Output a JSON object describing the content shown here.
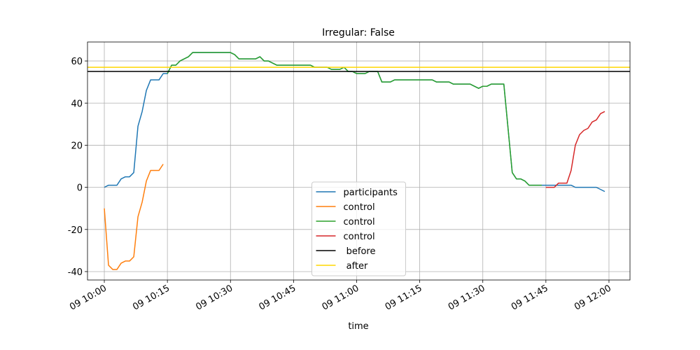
{
  "chart_data": {
    "type": "line",
    "title": "Irregular: False",
    "xlabel": "time",
    "xlim": [
      "09 09:56",
      "09 12:05"
    ],
    "xticks": [
      "09 10:00",
      "09 10:15",
      "09 10:30",
      "09 10:45",
      "09 11:00",
      "09 11:15",
      "09 11:30",
      "09 11:45",
      "09 12:00"
    ],
    "ylim": [
      -44,
      69
    ],
    "yticks": [
      -40,
      -20,
      0,
      20,
      40,
      60
    ],
    "grid": true,
    "legend": "lower center",
    "series": [
      {
        "name": "participants",
        "color": "#1f77b4",
        "x": [
          "09 10:00",
          "09 10:01",
          "09 10:02",
          "09 10:03",
          "09 10:04",
          "09 10:05",
          "09 10:06",
          "09 10:07",
          "09 10:08",
          "09 10:09",
          "09 10:10",
          "09 10:11",
          "09 10:12",
          "09 10:13",
          "09 10:14",
          "09 10:15",
          "09 10:16",
          "09 10:17",
          "09 10:18",
          "09 10:19",
          "09 10:20",
          "09 10:21",
          "09 10:22",
          "09 10:23",
          "09 10:24",
          "09 10:25",
          "09 10:26",
          "09 10:27",
          "09 10:28",
          "09 10:29",
          "09 10:30",
          "09 10:31",
          "09 10:32",
          "09 10:33",
          "09 10:34",
          "09 10:35",
          "09 10:36",
          "09 10:37",
          "09 10:38",
          "09 10:39",
          "09 10:40",
          "09 10:41",
          "09 10:42",
          "09 10:43",
          "09 10:44",
          "09 10:45",
          "09 10:46",
          "09 10:47",
          "09 10:48",
          "09 10:49",
          "09 10:50",
          "09 10:51",
          "09 10:52",
          "09 10:53",
          "09 10:54",
          "09 10:55",
          "09 10:56",
          "09 10:57",
          "09 10:58",
          "09 10:59",
          "09 11:00",
          "09 11:01",
          "09 11:02",
          "09 11:03",
          "09 11:04",
          "09 11:05",
          "09 11:06",
          "09 11:07",
          "09 11:08",
          "09 11:09",
          "09 11:10",
          "09 11:11",
          "09 11:12",
          "09 11:13",
          "09 11:14",
          "09 11:15",
          "09 11:16",
          "09 11:17",
          "09 11:18",
          "09 11:19",
          "09 11:20",
          "09 11:21",
          "09 11:22",
          "09 11:23",
          "09 11:24",
          "09 11:25",
          "09 11:26",
          "09 11:27",
          "09 11:28",
          "09 11:29",
          "09 11:30",
          "09 11:31",
          "09 11:32",
          "09 11:33",
          "09 11:34",
          "09 11:35",
          "09 11:36",
          "09 11:37",
          "09 11:38",
          "09 11:39",
          "09 11:40",
          "09 11:41",
          "09 11:42",
          "09 11:43",
          "09 11:44",
          "09 11:45",
          "09 11:46",
          "09 11:47",
          "09 11:48",
          "09 11:49",
          "09 11:50",
          "09 11:51",
          "09 11:52",
          "09 11:53",
          "09 11:54",
          "09 11:55",
          "09 11:56",
          "09 11:57",
          "09 11:58",
          "09 11:59"
        ],
        "values": [
          0,
          1,
          1,
          1,
          4,
          5,
          5,
          7,
          29,
          36,
          46,
          51,
          51,
          51,
          54,
          54,
          58,
          58,
          60,
          61,
          62,
          64,
          64,
          64,
          64,
          64,
          64,
          64,
          64,
          64,
          64,
          63,
          61,
          61,
          61,
          61,
          61,
          62,
          60,
          60,
          59,
          58,
          58,
          58,
          58,
          58,
          58,
          58,
          58,
          58,
          57,
          57,
          57,
          57,
          56,
          56,
          56,
          57,
          55,
          55,
          54,
          54,
          54,
          55,
          55,
          55,
          50,
          50,
          50,
          51,
          51,
          51,
          51,
          51,
          51,
          51,
          51,
          51,
          51,
          50,
          50,
          50,
          50,
          49,
          49,
          49,
          49,
          49,
          48,
          47,
          48,
          48,
          49,
          49,
          49,
          49,
          28,
          7,
          4,
          4,
          3,
          1,
          1,
          1,
          1,
          1,
          1,
          1,
          1,
          1,
          1,
          1,
          0,
          0,
          0,
          0,
          0,
          0,
          -1,
          -2
        ]
      },
      {
        "name": "control",
        "color": "#ff7f0e",
        "x": [
          "09 10:00",
          "09 10:01",
          "09 10:02",
          "09 10:03",
          "09 10:04",
          "09 10:05",
          "09 10:06",
          "09 10:07",
          "09 10:08",
          "09 10:09",
          "09 10:10",
          "09 10:11",
          "09 10:12",
          "09 10:13",
          "09 10:14"
        ],
        "values": [
          -10,
          -37,
          -39,
          -39,
          -36,
          -35,
          -35,
          -33,
          -14,
          -7,
          3,
          8,
          8,
          8,
          11
        ]
      },
      {
        "name": "control",
        "color": "#2ca02c",
        "x": [
          "09 10:15",
          "09 10:16",
          "09 10:17",
          "09 10:18",
          "09 10:19",
          "09 10:20",
          "09 10:21",
          "09 10:22",
          "09 10:23",
          "09 10:24",
          "09 10:25",
          "09 10:26",
          "09 10:27",
          "09 10:28",
          "09 10:29",
          "09 10:30",
          "09 10:31",
          "09 10:32",
          "09 10:33",
          "09 10:34",
          "09 10:35",
          "09 10:36",
          "09 10:37",
          "09 10:38",
          "09 10:39",
          "09 10:40",
          "09 10:41",
          "09 10:42",
          "09 10:43",
          "09 10:44",
          "09 10:45",
          "09 10:46",
          "09 10:47",
          "09 10:48",
          "09 10:49",
          "09 10:50",
          "09 10:51",
          "09 10:52",
          "09 10:53",
          "09 10:54",
          "09 10:55",
          "09 10:56",
          "09 10:57",
          "09 10:58",
          "09 10:59",
          "09 11:00",
          "09 11:01",
          "09 11:02",
          "09 11:03",
          "09 11:04",
          "09 11:05",
          "09 11:06",
          "09 11:07",
          "09 11:08",
          "09 11:09",
          "09 11:10",
          "09 11:11",
          "09 11:12",
          "09 11:13",
          "09 11:14",
          "09 11:15",
          "09 11:16",
          "09 11:17",
          "09 11:18",
          "09 11:19",
          "09 11:20",
          "09 11:21",
          "09 11:22",
          "09 11:23",
          "09 11:24",
          "09 11:25",
          "09 11:26",
          "09 11:27",
          "09 11:28",
          "09 11:29",
          "09 11:30",
          "09 11:31",
          "09 11:32",
          "09 11:33",
          "09 11:34",
          "09 11:35",
          "09 11:36",
          "09 11:37",
          "09 11:38",
          "09 11:39",
          "09 11:40",
          "09 11:41",
          "09 11:42",
          "09 11:43",
          "09 11:44"
        ],
        "values": [
          54,
          58,
          58,
          60,
          61,
          62,
          64,
          64,
          64,
          64,
          64,
          64,
          64,
          64,
          64,
          64,
          63,
          61,
          61,
          61,
          61,
          61,
          62,
          60,
          60,
          59,
          58,
          58,
          58,
          58,
          58,
          58,
          58,
          58,
          58,
          57,
          57,
          57,
          57,
          56,
          56,
          56,
          57,
          55,
          55,
          54,
          54,
          54,
          55,
          55,
          55,
          50,
          50,
          50,
          51,
          51,
          51,
          51,
          51,
          51,
          51,
          51,
          51,
          51,
          50,
          50,
          50,
          50,
          49,
          49,
          49,
          49,
          49,
          48,
          47,
          48,
          48,
          49,
          49,
          49,
          49,
          28,
          7,
          4,
          4,
          3,
          1,
          1,
          1,
          1
        ]
      },
      {
        "name": "control",
        "color": "#d62728",
        "x": [
          "09 11:45",
          "09 11:46",
          "09 11:47",
          "09 11:48",
          "09 11:49",
          "09 11:50",
          "09 11:51",
          "09 11:52",
          "09 11:53",
          "09 11:54",
          "09 11:55",
          "09 11:56",
          "09 11:57",
          "09 11:58",
          "09 11:59"
        ],
        "values": [
          0,
          0,
          0,
          2,
          2,
          2,
          8,
          20,
          25,
          27,
          28,
          31,
          32,
          35,
          36
        ]
      }
    ],
    "hlines": [
      {
        "name": " before",
        "color": "#000000",
        "value": 55
      },
      {
        "name": " after",
        "color": "#ffd700",
        "value": 57
      }
    ]
  }
}
